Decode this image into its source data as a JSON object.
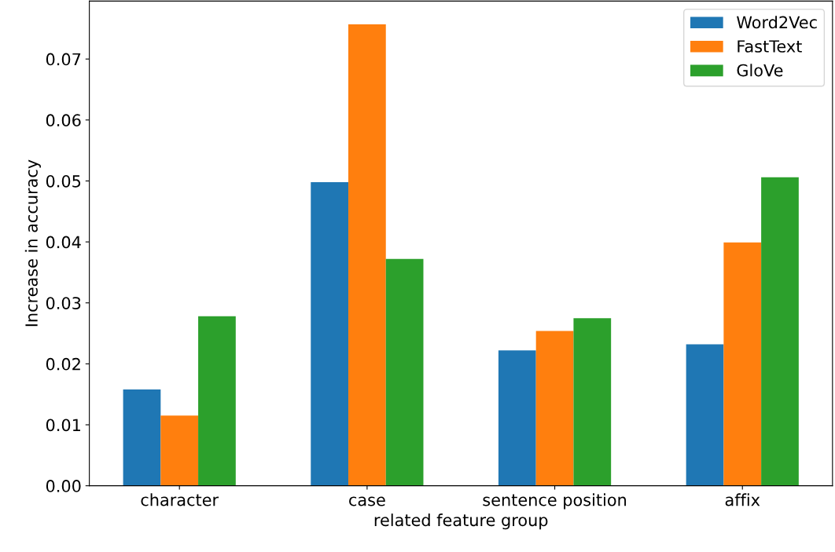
{
  "chart_data": {
    "type": "bar",
    "xlabel": "related feature group",
    "ylabel": "Increase in accuracy",
    "categories": [
      "character",
      "case",
      "sentence position",
      "affix"
    ],
    "series": [
      {
        "name": "Word2Vec",
        "color": "#1f77b4",
        "values": [
          0.0158,
          0.0498,
          0.0222,
          0.0232
        ]
      },
      {
        "name": "FastText",
        "color": "#ff7f0e",
        "values": [
          0.0115,
          0.0757,
          0.0254,
          0.0399
        ]
      },
      {
        "name": "GloVe",
        "color": "#2ca02c",
        "values": [
          0.0278,
          0.0372,
          0.0275,
          0.0506
        ]
      }
    ],
    "ylim": [
      0,
      0.0795
    ],
    "yticks": [
      {
        "value": 0,
        "label": "0.00"
      },
      {
        "value": 0.01,
        "label": "0.01"
      },
      {
        "value": 0.02,
        "label": "0.02"
      },
      {
        "value": 0.03,
        "label": "0.03"
      },
      {
        "value": 0.04,
        "label": "0.04"
      },
      {
        "value": 0.05,
        "label": "0.05"
      },
      {
        "value": 0.06,
        "label": "0.06"
      },
      {
        "value": 0.07,
        "label": "0.07"
      }
    ],
    "legend": "top right",
    "grid": false
  }
}
